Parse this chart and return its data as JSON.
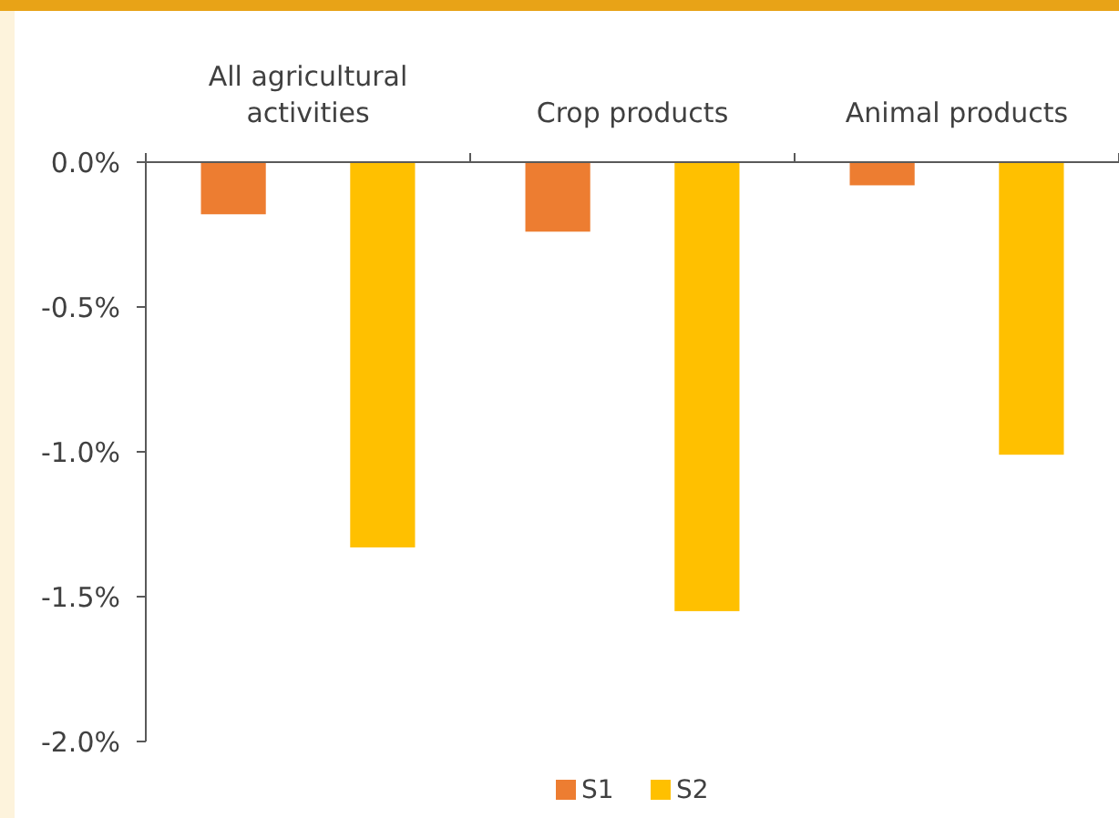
{
  "chart_data": {
    "type": "bar",
    "categories": [
      "All agricultural activities",
      "Crop products",
      "Animal products"
    ],
    "series": [
      {
        "name": "S1",
        "color": "#ed7d31",
        "values": [
          -0.18,
          -0.24,
          -0.08
        ]
      },
      {
        "name": "S2",
        "color": "#ffc000",
        "values": [
          -1.33,
          -1.55,
          -1.01
        ]
      }
    ],
    "ylim": [
      -2.0,
      0.0
    ],
    "yticks": [
      {
        "value": 0,
        "label": "0.0%"
      },
      {
        "value": -0.5,
        "label": "-0.5%"
      },
      {
        "value": -1.0,
        "label": "-1.0%"
      },
      {
        "value": -1.5,
        "label": "-1.5%"
      },
      {
        "value": -2.0,
        "label": "-2.0%"
      }
    ],
    "grid": false,
    "legend": "bottom"
  }
}
